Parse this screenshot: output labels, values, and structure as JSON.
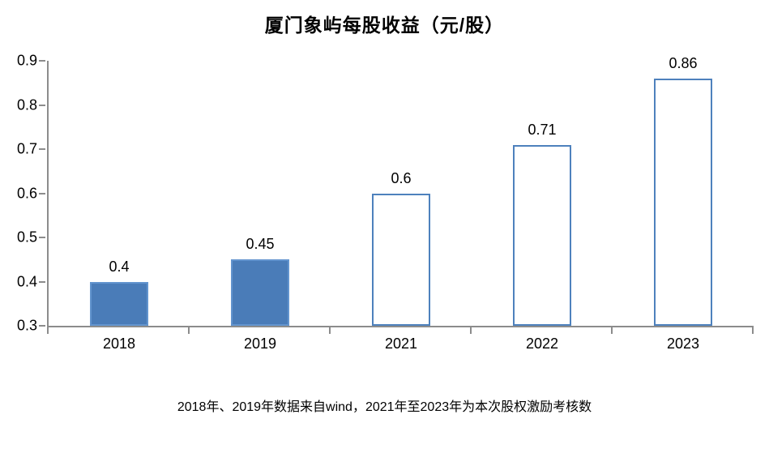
{
  "chart_data": {
    "type": "bar",
    "title": "厦门象屿每股收益（元/股）",
    "categories": [
      "2018",
      "2019",
      "2021",
      "2022",
      "2023"
    ],
    "values": [
      0.4,
      0.45,
      0.6,
      0.71,
      0.86
    ],
    "value_labels": [
      "0.4",
      "0.45",
      "0.6",
      "0.71",
      "0.86"
    ],
    "bar_styles": [
      "solid",
      "solid",
      "outline",
      "outline",
      "outline"
    ],
    "ylim": [
      0.3,
      0.9
    ],
    "y_ticks": [
      "0.9",
      "0.8",
      "0.7",
      "0.6",
      "0.5",
      "0.4",
      "0.3"
    ],
    "grid": false,
    "legend": "none",
    "note": "2018年、2019年数据来自wind，2021年至2023年为本次股权激励考核数",
    "colors": {
      "solid_fill": "#4A7CB8",
      "solid_border": "#6294CE",
      "outline_border": "#4E81BD",
      "outline_fill": "#FFFFFF",
      "axis": "#8C8C8C",
      "text": "#000000"
    }
  }
}
